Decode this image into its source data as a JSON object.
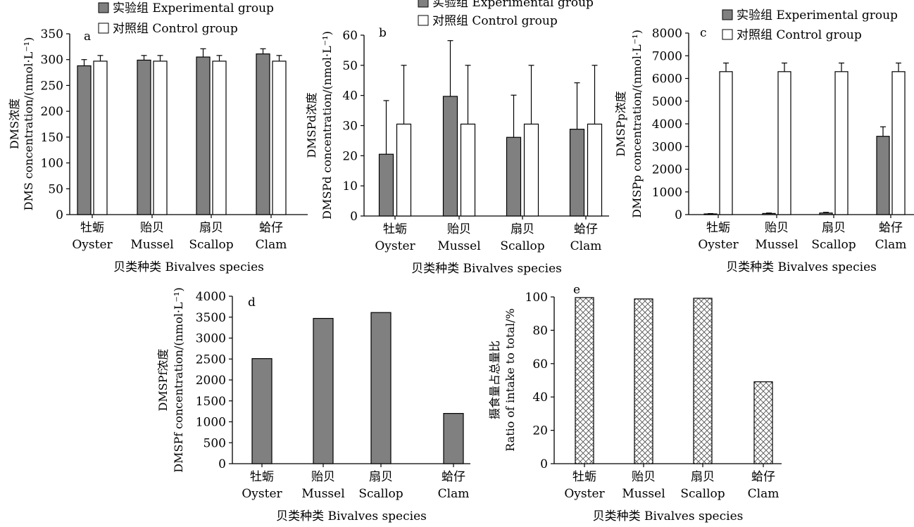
{
  "categories_cn": [
    "牡蛎",
    "贻贝",
    "扇贝",
    "蛤仔"
  ],
  "categories_en": [
    "Oyster",
    "Mussel",
    "Scallop",
    "Clam"
  ],
  "xlabel": "贝类种类 Bivalves species",
  "legend": {
    "experimental": "实验组 Experimental group",
    "control": "对照组 Control group"
  },
  "colors": {
    "experimental": "#808080",
    "control": "#ffffff",
    "outline": "#000000"
  },
  "chart_data": [
    {
      "panel": "a",
      "type": "bar",
      "ylabel_cn": "DMS浓度",
      "ylabel_en": "DMS concentration/(nmol·L⁻¹)",
      "ylim": [
        0,
        350
      ],
      "yticks": [
        0,
        50,
        100,
        150,
        200,
        250,
        300,
        350
      ],
      "series": [
        {
          "name": "实验组 Experimental group",
          "values": [
            288,
            299,
            305,
            311
          ],
          "errors": [
            12,
            9,
            16,
            10
          ]
        },
        {
          "name": "对照组 Control group",
          "values": [
            297,
            297,
            297,
            297
          ],
          "errors": [
            11,
            11,
            11,
            11
          ]
        }
      ]
    },
    {
      "panel": "b",
      "type": "bar",
      "ylabel_cn": "DMSPd浓度",
      "ylabel_en": "DMSPd concentration/(nmol·L⁻¹)",
      "ylim": [
        0,
        60
      ],
      "yticks": [
        0,
        10,
        20,
        30,
        40,
        50,
        60
      ],
      "series": [
        {
          "name": "实验组 Experimental group",
          "values": [
            20.5,
            39.7,
            26.1,
            28.8
          ],
          "errors": [
            17.8,
            18.5,
            14.0,
            15.4
          ]
        },
        {
          "name": "对照组 Control group",
          "values": [
            30.5,
            30.5,
            30.5,
            30.5
          ],
          "errors": [
            19.5,
            19.5,
            19.5,
            19.5
          ]
        }
      ]
    },
    {
      "panel": "c",
      "type": "bar",
      "ylabel_cn": "DMSPp浓度",
      "ylabel_en": "DMSPp concentration/(nmol·L⁻¹)",
      "ylim": [
        0,
        8000
      ],
      "yticks": [
        0,
        1000,
        2000,
        3000,
        4000,
        5000,
        6000,
        7000,
        8000
      ],
      "series": [
        {
          "name": "实验组 Experimental group",
          "values": [
            30,
            50,
            70,
            3450
          ],
          "errors": [
            15,
            20,
            30,
            420
          ]
        },
        {
          "name": "对照组 Control group",
          "values": [
            6300,
            6300,
            6300,
            6300
          ],
          "errors": [
            380,
            380,
            380,
            380
          ]
        }
      ]
    },
    {
      "panel": "d",
      "type": "bar",
      "ylabel_cn": "DMSPf浓度",
      "ylabel_en": "DMSPf concentration/(nmol·L⁻¹)",
      "ylim": [
        0,
        4000
      ],
      "yticks": [
        0,
        500,
        1000,
        1500,
        2000,
        2500,
        3000,
        3500,
        4000
      ],
      "series": [
        {
          "values": [
            2510,
            3470,
            3610,
            1200
          ]
        }
      ]
    },
    {
      "panel": "e",
      "type": "bar",
      "ylabel_cn": "摄食量占总量比",
      "ylabel_en": "Ratio of intake to total/%",
      "ylim": [
        0,
        100
      ],
      "yticks": [
        0,
        20,
        40,
        60,
        80,
        100
      ],
      "series": [
        {
          "values": [
            99.6,
            98.8,
            99.2,
            49.1
          ]
        }
      ]
    }
  ]
}
